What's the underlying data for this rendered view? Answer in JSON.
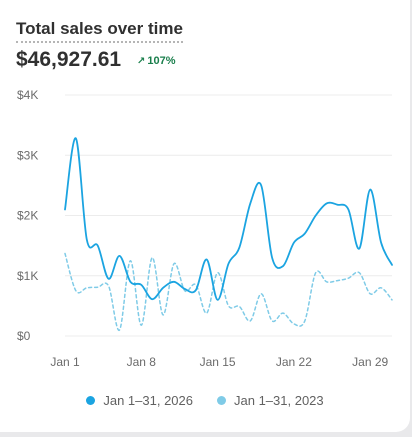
{
  "header": {
    "title": "Total sales over time",
    "total": "$46,927.61",
    "change_icon": "arrow-up-right-icon",
    "change": "107%",
    "change_color": "#1a7f4c"
  },
  "chart_data": {
    "type": "line",
    "title": "Total sales over time",
    "xlabel": "",
    "ylabel": "",
    "ylim": [
      0,
      4000
    ],
    "xlim": [
      "Jan 1",
      "Jan 31"
    ],
    "y_ticks": [
      "$0",
      "$1K",
      "$2K",
      "$3K",
      "$4K"
    ],
    "x_ticks": [
      "Jan 1",
      "Jan 8",
      "Jan 15",
      "Jan 22",
      "Jan 29"
    ],
    "grid": true,
    "legend_position": "bottom",
    "series": [
      {
        "name": "Jan 1–31, 2026",
        "color": "#1ba4e1",
        "style": "solid",
        "values": [
          2100,
          3280,
          1600,
          1500,
          950,
          1330,
          900,
          850,
          610,
          800,
          900,
          780,
          760,
          1270,
          600,
          1200,
          1470,
          2200,
          2500,
          1300,
          1160,
          1550,
          1700,
          2000,
          2200,
          2180,
          2100,
          1450,
          2430,
          1550,
          1180
        ]
      },
      {
        "name": "Jan 1–31, 2023",
        "color": "#7fcbe7",
        "style": "dashed",
        "values": [
          1370,
          750,
          800,
          810,
          830,
          100,
          1250,
          180,
          1300,
          350,
          1200,
          750,
          850,
          380,
          1050,
          500,
          490,
          250,
          700,
          250,
          380,
          200,
          250,
          1050,
          900,
          920,
          960,
          1050,
          700,
          800,
          600
        ]
      }
    ]
  },
  "legend": {
    "items": [
      {
        "label": "Jan 1–31, 2026",
        "color": "#1ba4e1"
      },
      {
        "label": "Jan 1–31, 2023",
        "color": "#7fcbe7"
      }
    ]
  }
}
